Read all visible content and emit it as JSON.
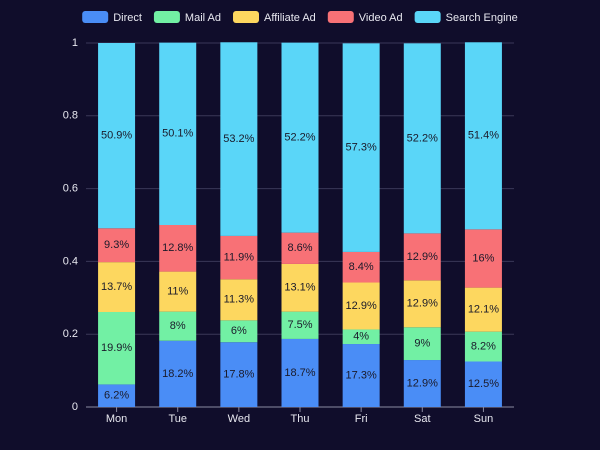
{
  "chart_data": {
    "type": "stacked_bar",
    "categories": [
      "Mon",
      "Tue",
      "Wed",
      "Thu",
      "Fri",
      "Sat",
      "Sun"
    ],
    "series": [
      {
        "name": "Direct",
        "color": "#4a8df6",
        "values": [
          0.062,
          0.182,
          0.178,
          0.187,
          0.173,
          0.129,
          0.125
        ],
        "value_labels": [
          "6.2%",
          "18.2%",
          "17.8%",
          "18.7%",
          "17.3%",
          "12.9%",
          "12.5%"
        ]
      },
      {
        "name": "Mail Ad",
        "color": "#72f0a4",
        "values": [
          0.199,
          0.08,
          0.06,
          0.075,
          0.04,
          0.09,
          0.082
        ],
        "value_labels": [
          "19.9%",
          "8%",
          "6%",
          "7.5%",
          "4%",
          "9%",
          "8.2%"
        ]
      },
      {
        "name": "Affiliate Ad",
        "color": "#fdd75f",
        "values": [
          0.137,
          0.11,
          0.113,
          0.131,
          0.129,
          0.129,
          0.121
        ],
        "value_labels": [
          "13.7%",
          "11%",
          "11.3%",
          "13.1%",
          "12.9%",
          "12.9%",
          "12.1%"
        ]
      },
      {
        "name": "Video Ad",
        "color": "#f87176",
        "values": [
          0.093,
          0.128,
          0.119,
          0.086,
          0.084,
          0.129,
          0.16
        ],
        "value_labels": [
          "9.3%",
          "12.8%",
          "11.9%",
          "8.6%",
          "8.4%",
          "12.9%",
          "16%"
        ]
      },
      {
        "name": "Search Engine",
        "color": "#5ad6f8",
        "values": [
          0.509,
          0.501,
          0.532,
          0.522,
          0.573,
          0.522,
          0.514
        ],
        "value_labels": [
          "50.9%",
          "50.1%",
          "53.2%",
          "52.2%",
          "57.3%",
          "52.2%",
          "51.4%"
        ]
      }
    ],
    "ylim": [
      0,
      1
    ],
    "yticks": [
      0,
      0.2,
      0.4,
      0.6,
      0.8,
      1
    ],
    "grid": true,
    "legend": "top"
  }
}
